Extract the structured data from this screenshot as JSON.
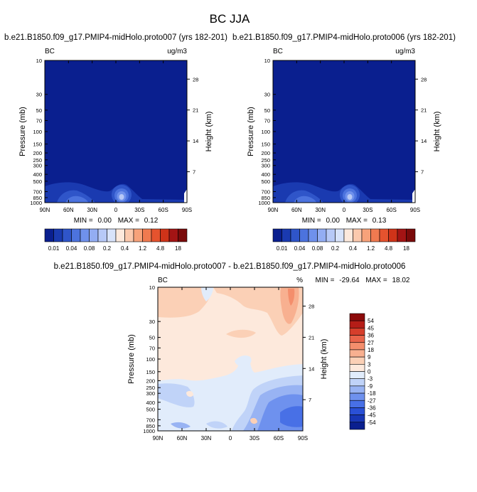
{
  "title": "BC JJA",
  "colors": {
    "seq": [
      "#0a1f8f",
      "#1a3ab0",
      "#2f55c9",
      "#4c73de",
      "#6f91ec",
      "#93adf3",
      "#b7c9f7",
      "#d8e3fa",
      "#fde9dc",
      "#fbc9ad",
      "#f7a27a",
      "#f07a50",
      "#e5532e",
      "#cf3319",
      "#a31414",
      "#7a0a0a"
    ],
    "diff": [
      "#0a1f8f",
      "#1836b5",
      "#2a50d6",
      "#4870e6",
      "#6e91ee",
      "#98b3f3",
      "#c0d3f8",
      "#e1ecfb",
      "#fde9dc",
      "#fbd0b6",
      "#f8b090",
      "#f48e6c",
      "#e9644a",
      "#d63e2b",
      "#b51d17",
      "#8c0a0a"
    ]
  },
  "chart_data": [
    {
      "type": "heatmap",
      "name": "top-left",
      "title": "b.e21.B1850.f09_g17.PMIP4-midHolo.proto007 (yrs 182-201)",
      "left_label": "BC",
      "units": "ug/m3",
      "xlabel": "",
      "ylabel": "Pressure (mb)",
      "y2label": "Height (km)",
      "xticks": [
        "90N",
        "60N",
        "30N",
        "0",
        "30S",
        "60S",
        "90S"
      ],
      "yticks": [
        "10",
        "30",
        "50",
        "70",
        "100",
        "150",
        "200",
        "250",
        "300",
        "400",
        "500",
        "700",
        "850",
        "1000"
      ],
      "y2ticks": [
        "28",
        "21",
        "14",
        "7"
      ],
      "stats": {
        "min_label": "MIN =",
        "min": "0.00",
        "max_label": "MAX =",
        "max": "0.12"
      },
      "colorbar_labels": [
        "0.01",
        "0.04",
        "0.08",
        "0.2",
        "0.4",
        "1.2",
        "4.8",
        "18"
      ]
    },
    {
      "type": "heatmap",
      "name": "top-right",
      "title": "b.e21.B1850.f09_g17.PMIP4-midHolo.proto006 (yrs 182-201)",
      "left_label": "BC",
      "units": "ug/m3",
      "xlabel": "",
      "ylabel": "Pressure (mb)",
      "y2label": "Height (km)",
      "xticks": [
        "90N",
        "60N",
        "30N",
        "0",
        "30S",
        "60S",
        "90S"
      ],
      "yticks": [
        "10",
        "30",
        "50",
        "70",
        "100",
        "150",
        "200",
        "250",
        "300",
        "400",
        "500",
        "700",
        "850",
        "1000"
      ],
      "y2ticks": [
        "28",
        "21",
        "14",
        "7"
      ],
      "stats": {
        "min_label": "MIN =",
        "min": "0.00",
        "max_label": "MAX =",
        "max": "0.13"
      },
      "colorbar_labels": [
        "0.01",
        "0.04",
        "0.08",
        "0.2",
        "0.4",
        "1.2",
        "4.8",
        "18"
      ]
    },
    {
      "type": "heatmap",
      "name": "difference",
      "title": "b.e21.B1850.f09_g17.PMIP4-midHolo.proto007 - b.e21.B1850.f09_g17.PMIP4-midHolo.proto006",
      "left_label": "BC",
      "units": "%",
      "xlabel": "",
      "ylabel": "Pressure (mb)",
      "y2label": "Height (km)",
      "xticks": [
        "90N",
        "60N",
        "30N",
        "0",
        "30S",
        "60S",
        "90S"
      ],
      "yticks": [
        "10",
        "30",
        "50",
        "70",
        "100",
        "150",
        "200",
        "250",
        "300",
        "400",
        "500",
        "700",
        "850",
        "1000"
      ],
      "y2ticks": [
        "28",
        "21",
        "14",
        "7"
      ],
      "stats": {
        "min_label": "MIN =",
        "min": "-29.64",
        "max_label": "MAX =",
        "max": "18.02"
      },
      "colorbar_labels": [
        "54",
        "45",
        "36",
        "27",
        "18",
        "9",
        "3",
        "0",
        "-3",
        "-9",
        "-18",
        "-27",
        "-36",
        "-45",
        "-54"
      ]
    }
  ]
}
